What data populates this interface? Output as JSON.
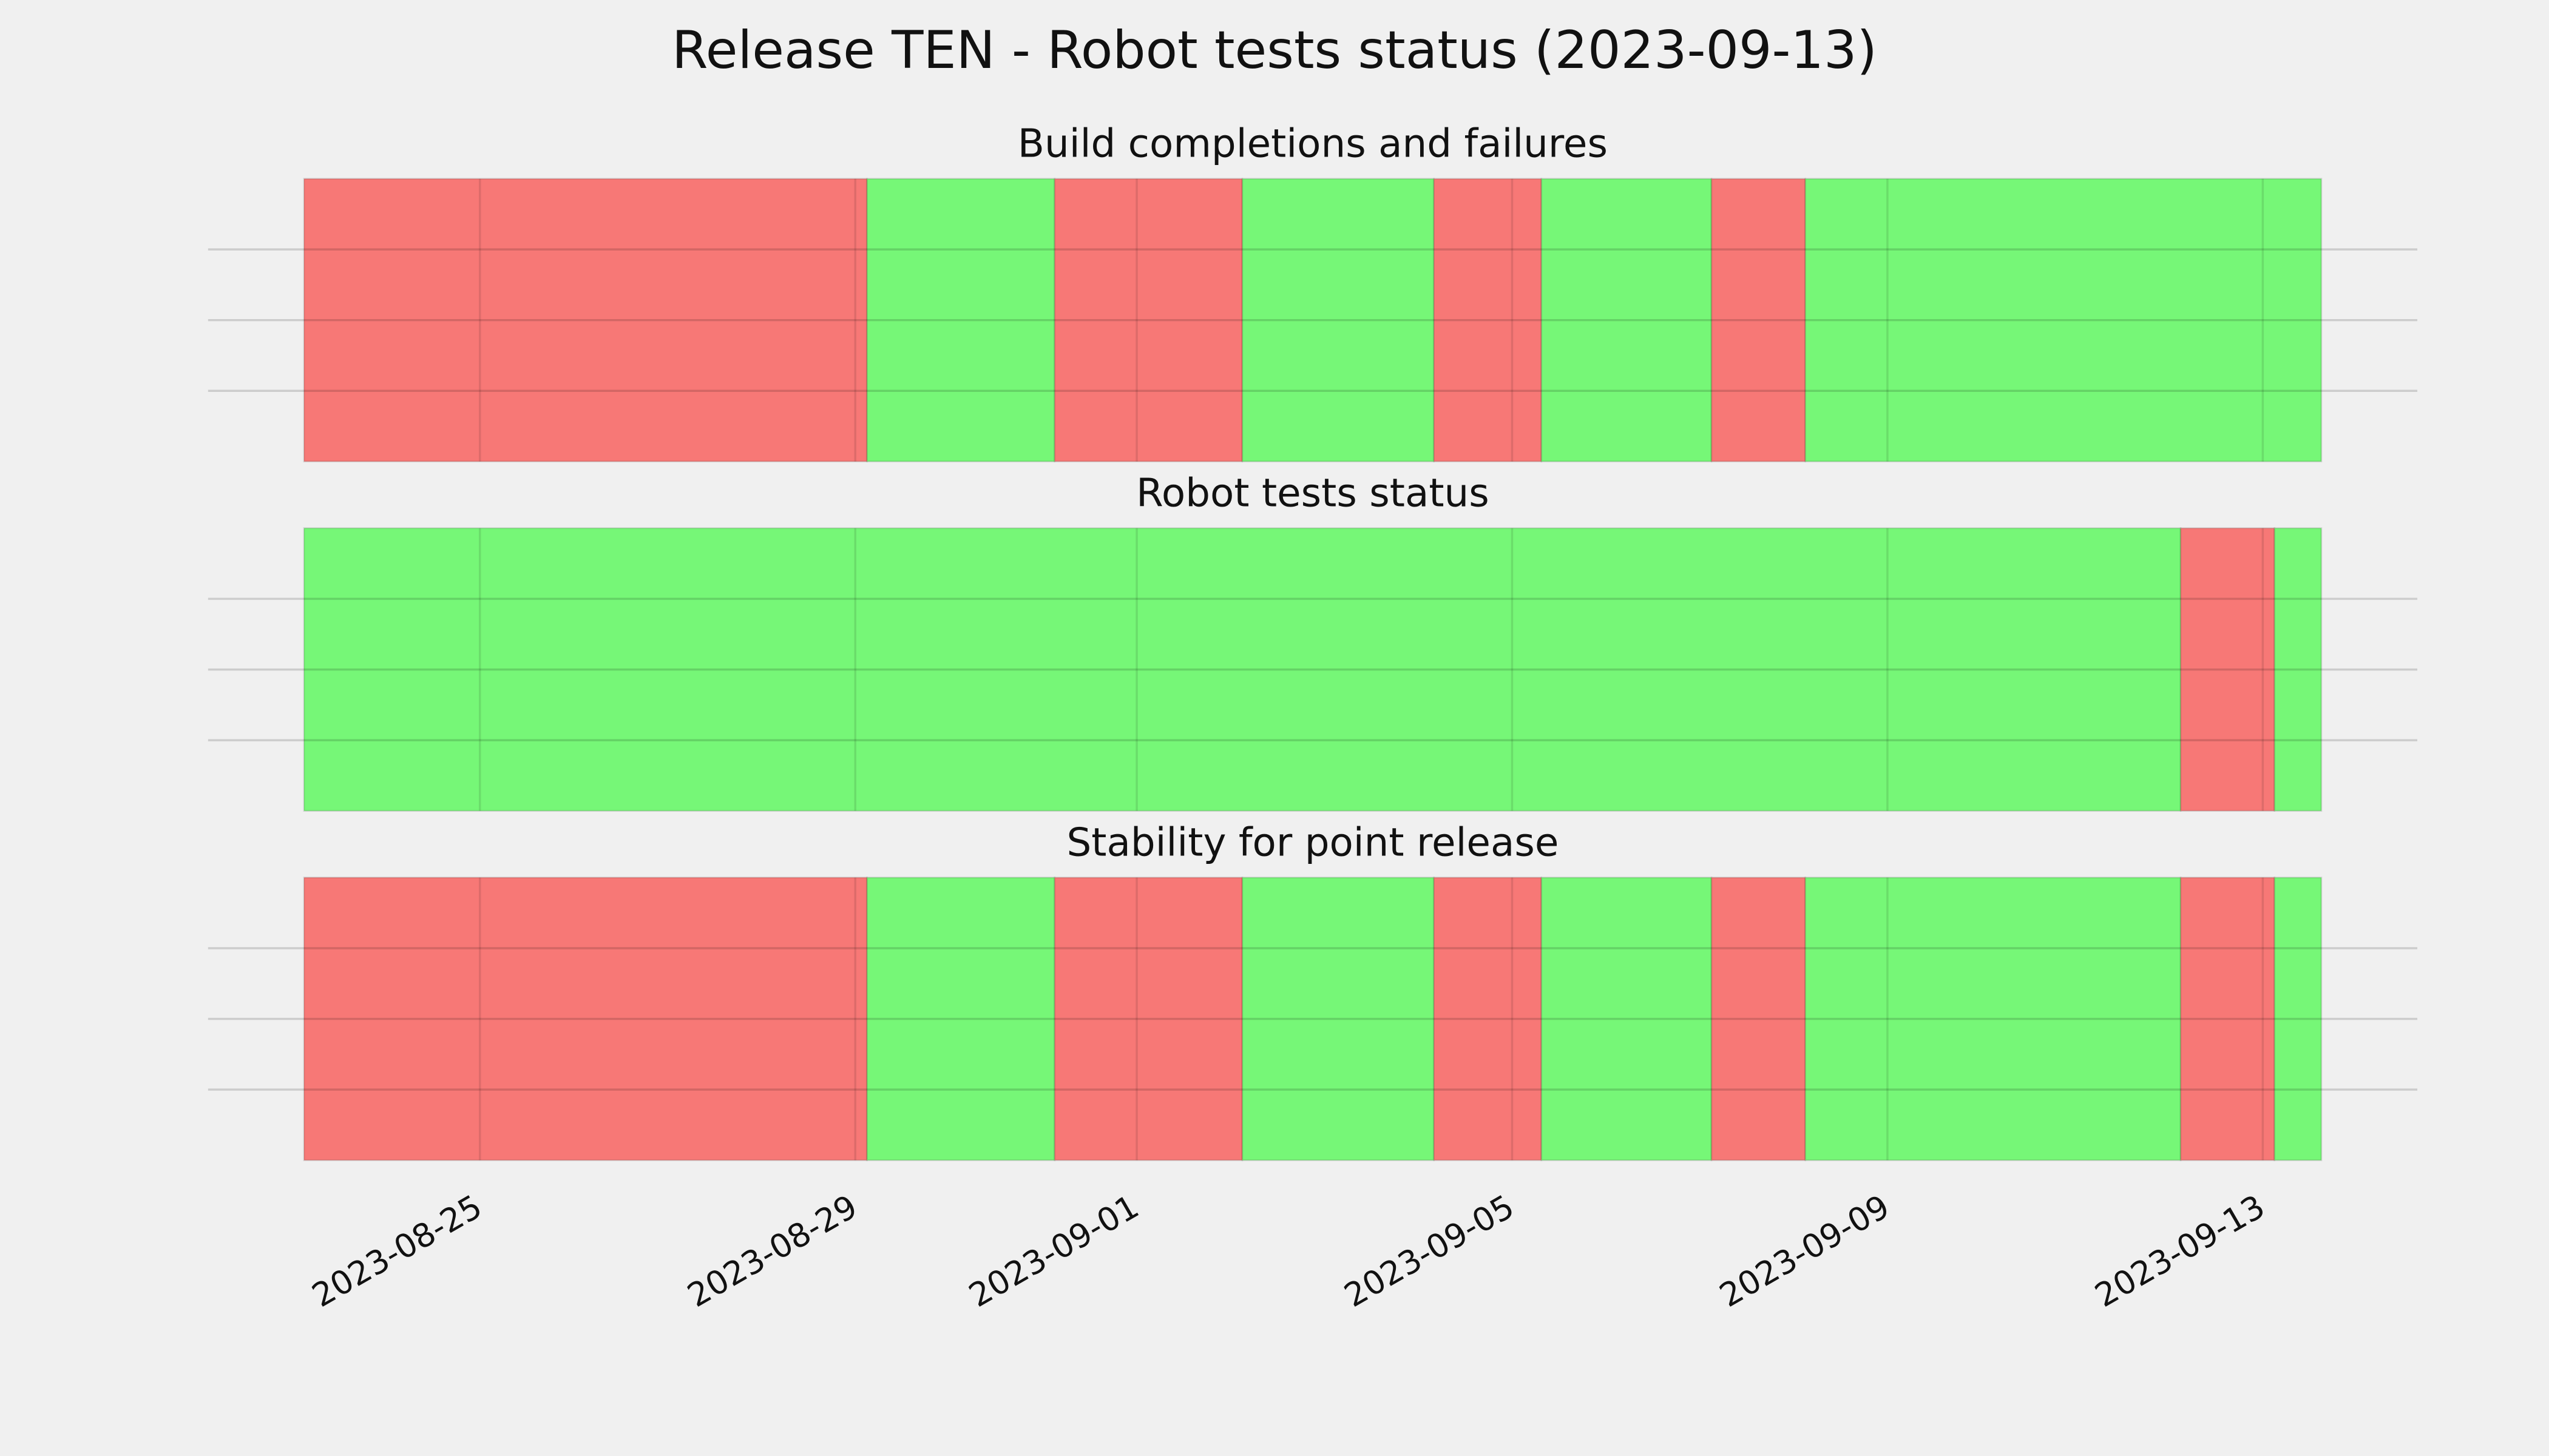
{
  "title": "Release TEN - Robot tests status (2023-09-13)",
  "chart_data": [
    {
      "type": "span",
      "subtitle": "Build completions and failures",
      "xlim": [
        "2023-08-23 03:00",
        "2023-09-13 15:00"
      ],
      "xticks": [
        "2023-08-25",
        "2023-08-29",
        "2023-09-01",
        "2023-09-05",
        "2023-09-09",
        "2023-09-13"
      ],
      "ylim": [
        0,
        1
      ],
      "yticks": [
        0.25,
        0.5,
        0.75
      ],
      "grid": true,
      "spans": [
        {
          "start": "2023-08-23 03:00",
          "end": "2023-08-29 03:00",
          "color": "#f77876"
        },
        {
          "start": "2023-08-29 03:00",
          "end": "2023-08-31 03:00",
          "color": "#76f777"
        },
        {
          "start": "2023-08-31 03:00",
          "end": "2023-09-02 03:00",
          "color": "#f77876"
        },
        {
          "start": "2023-09-02 03:00",
          "end": "2023-09-04 04:00",
          "color": "#76f777"
        },
        {
          "start": "2023-09-04 04:00",
          "end": "2023-09-05 07:30",
          "color": "#f77876"
        },
        {
          "start": "2023-09-05 07:30",
          "end": "2023-09-07 03:00",
          "color": "#76f777"
        },
        {
          "start": "2023-09-07 03:00",
          "end": "2023-09-08 03:00",
          "color": "#f77876"
        },
        {
          "start": "2023-09-08 03:00",
          "end": "2023-09-13 15:00",
          "color": "#76f777"
        }
      ]
    },
    {
      "type": "span",
      "subtitle": "Robot tests status",
      "xlim": [
        "2023-08-23 03:00",
        "2023-09-13 15:00"
      ],
      "xticks": [
        "2023-08-25",
        "2023-08-29",
        "2023-09-01",
        "2023-09-05",
        "2023-09-09",
        "2023-09-13"
      ],
      "ylim": [
        0,
        1
      ],
      "yticks": [
        0.25,
        0.5,
        0.75
      ],
      "grid": true,
      "spans": [
        {
          "start": "2023-08-23 03:00",
          "end": "2023-09-12 03:00",
          "color": "#76f777"
        },
        {
          "start": "2023-09-12 03:00",
          "end": "2023-09-13 03:00",
          "color": "#f77876"
        },
        {
          "start": "2023-09-13 03:00",
          "end": "2023-09-13 15:00",
          "color": "#76f777"
        }
      ]
    },
    {
      "type": "span",
      "subtitle": "Stability for point release",
      "xlim": [
        "2023-08-23 03:00",
        "2023-09-13 15:00"
      ],
      "xticks": [
        "2023-08-25",
        "2023-08-29",
        "2023-09-01",
        "2023-09-05",
        "2023-09-09",
        "2023-09-13"
      ],
      "ylim": [
        0,
        1
      ],
      "yticks": [
        0.25,
        0.5,
        0.75
      ],
      "grid": true,
      "show_xtick_labels": true,
      "spans": [
        {
          "start": "2023-08-23 03:00",
          "end": "2023-08-29 03:00",
          "color": "#f77876"
        },
        {
          "start": "2023-08-29 03:00",
          "end": "2023-08-31 03:00",
          "color": "#76f777"
        },
        {
          "start": "2023-08-31 03:00",
          "end": "2023-09-02 03:00",
          "color": "#f77876"
        },
        {
          "start": "2023-09-02 03:00",
          "end": "2023-09-04 04:00",
          "color": "#76f777"
        },
        {
          "start": "2023-09-04 04:00",
          "end": "2023-09-05 07:30",
          "color": "#f77876"
        },
        {
          "start": "2023-09-05 07:30",
          "end": "2023-09-07 03:00",
          "color": "#76f777"
        },
        {
          "start": "2023-09-07 03:00",
          "end": "2023-09-08 03:00",
          "color": "#f77876"
        },
        {
          "start": "2023-09-08 03:00",
          "end": "2023-09-12 03:00",
          "color": "#76f777"
        },
        {
          "start": "2023-09-12 03:00",
          "end": "2023-09-13 03:00",
          "color": "#f77876"
        },
        {
          "start": "2023-09-13 03:00",
          "end": "2023-09-13 15:00",
          "color": "#76f777"
        }
      ]
    }
  ]
}
